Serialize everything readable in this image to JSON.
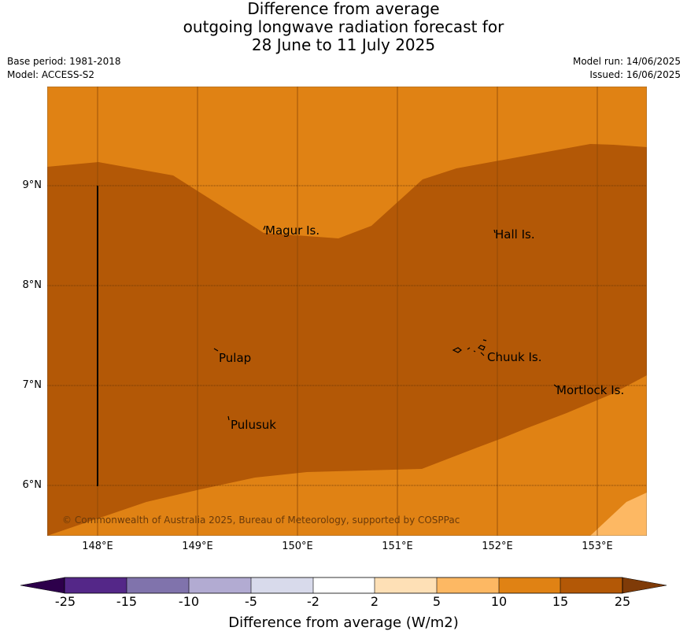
{
  "title": {
    "line1": "Difference from average",
    "line2": "outgoing longwave radiation forecast for",
    "line3": "28 June to 11 July 2025"
  },
  "meta": {
    "base_period": "Base period: 1981-2018",
    "model": "Model: ACCESS-S2",
    "model_run": "Model run: 14/06/2025",
    "issued": "Issued: 16/06/2025"
  },
  "map": {
    "lat_ticks": [
      "9°N",
      "8°N",
      "7°N",
      "6°N"
    ],
    "lon_ticks": [
      "148°E",
      "149°E",
      "150°E",
      "151°E",
      "152°E",
      "153°E"
    ],
    "places": [
      {
        "name": "Magur Is."
      },
      {
        "name": "Hall Is."
      },
      {
        "name": "Pulap"
      },
      {
        "name": "Chuuk Is."
      },
      {
        "name": "Mortlock Is."
      },
      {
        "name": "Pulusuk"
      }
    ],
    "copyright": "© Commonwealth of Australia 2025, Bureau of Meteorology, supported by COSPPac",
    "colors": {
      "band_10_15": "#e08214",
      "band_15_25": "#b35806",
      "band_5_10": "#fdb863"
    }
  },
  "colorbar": {
    "title": "Difference from average (W/m2)",
    "labels": [
      "-25",
      "-15",
      "-10",
      "-5",
      "-2",
      "2",
      "5",
      "10",
      "15",
      "25"
    ],
    "colors": [
      "#2d004b",
      "#542788",
      "#8073ac",
      "#b2abd2",
      "#d8daeb",
      "#ffffff",
      "#fee0b6",
      "#fdb863",
      "#e08214",
      "#b35806",
      "#7f3b08"
    ]
  }
}
